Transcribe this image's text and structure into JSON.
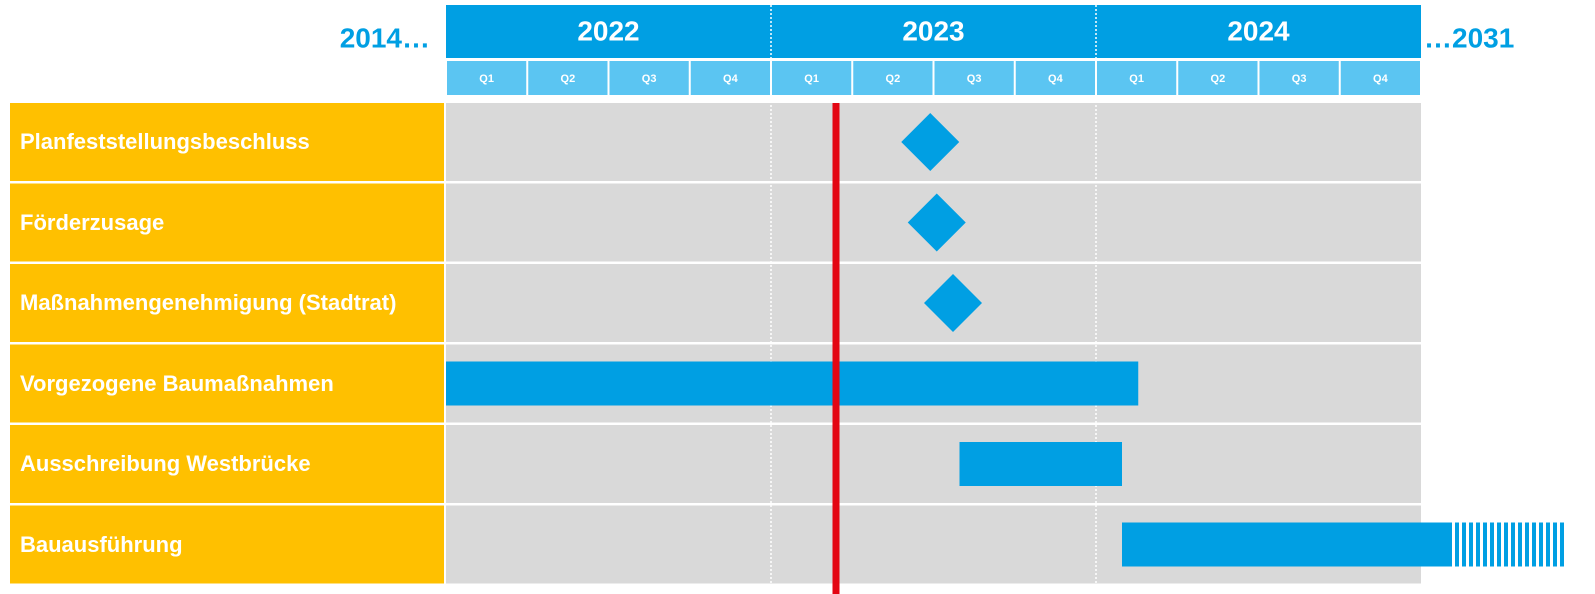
{
  "chart_data": {
    "type": "gantt",
    "left_label": "2014…",
    "right_label": "…2031",
    "xlim": [
      2022,
      2025
    ],
    "xticks": [
      2022,
      2023,
      2024
    ],
    "quarters": [
      "Q1",
      "Q2",
      "Q3",
      "Q4"
    ],
    "today": 2023.2,
    "today_color": "#e30613",
    "color": "#009fe3",
    "tasks": [
      {
        "label": "Planfeststellungsbeschluss",
        "milestone": 2023.49
      },
      {
        "label": "Förderzusage",
        "milestone": 2023.51
      },
      {
        "label": "Maßnahmengenehmigung (Stadtrat)",
        "milestone": 2023.56
      },
      {
        "label": "Vorgezogene Baumaßnahmen",
        "start": 2014,
        "end": 2024.13
      },
      {
        "label": "Ausschreibung Westbrücke",
        "start": 2023.58,
        "end": 2024.08
      },
      {
        "label": "Bauausführung",
        "start": 2024.08,
        "end": 2031
      }
    ]
  }
}
